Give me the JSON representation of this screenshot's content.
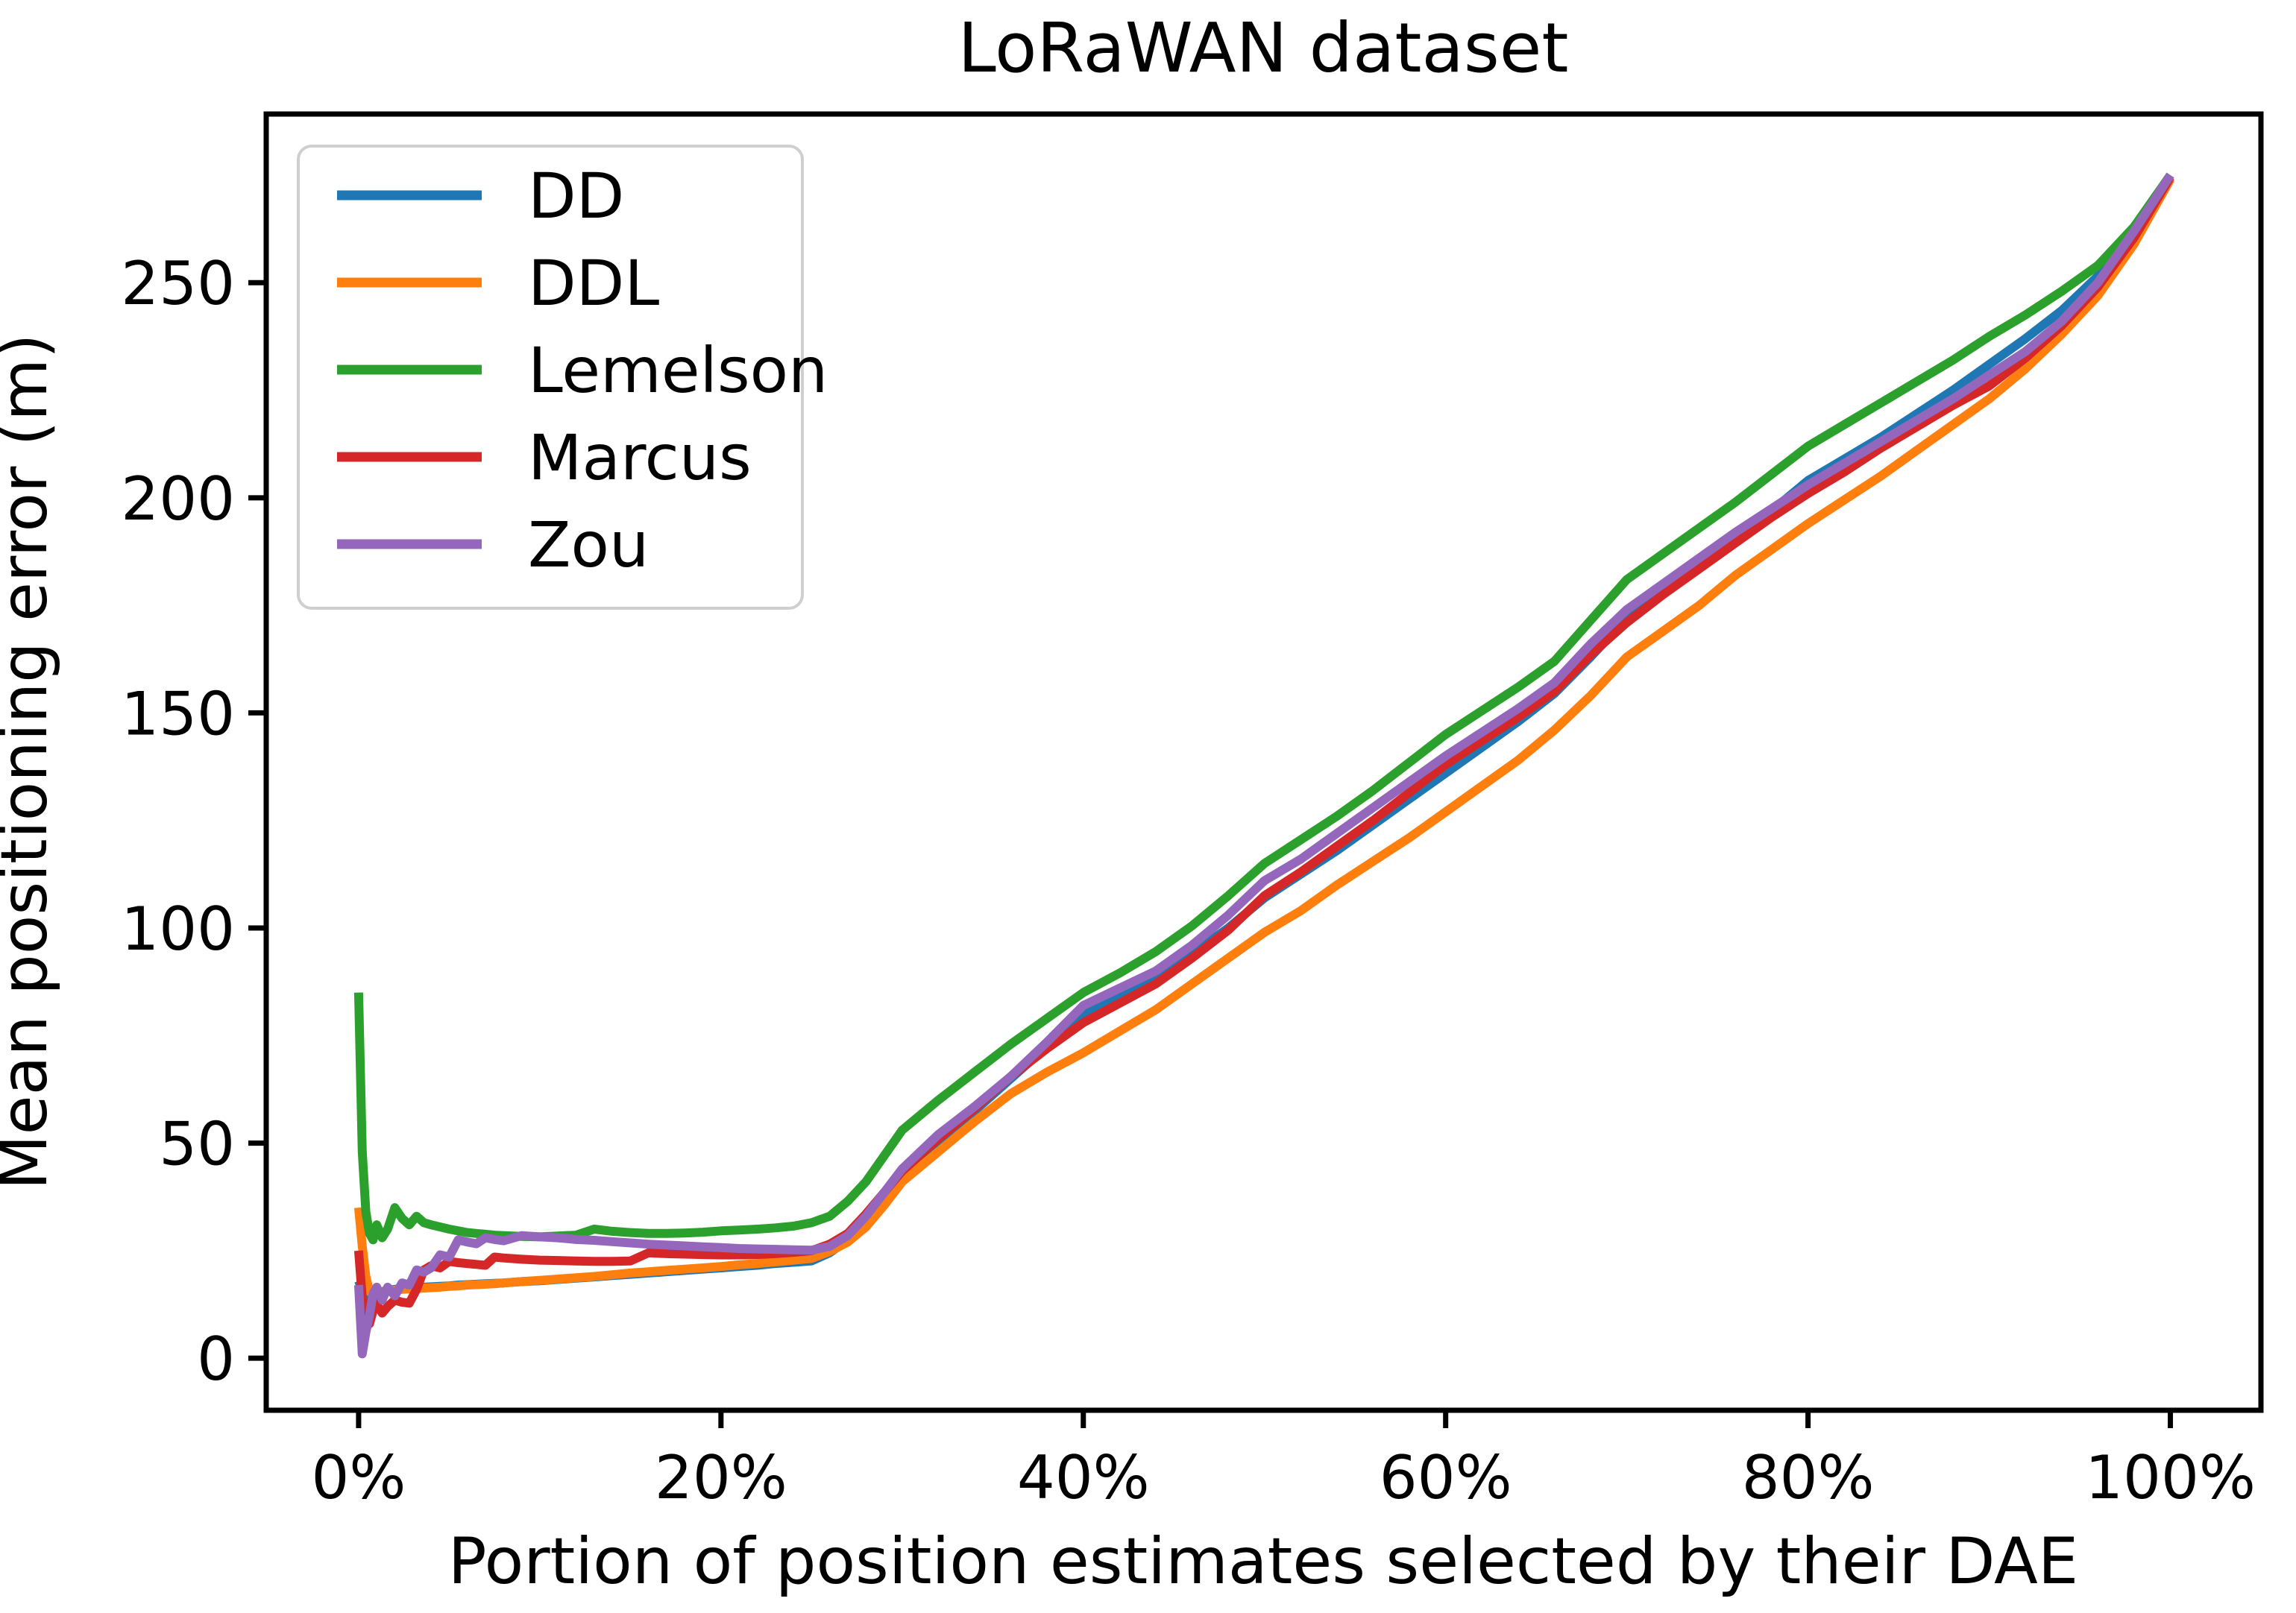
{
  "figure": {
    "background": "#ffffff",
    "text_color": "#000000",
    "spine_color": "#000000"
  },
  "chart_data": {
    "type": "line",
    "title": "LoRaWAN dataset",
    "xlabel": "Portion of position estimates selected by their DAE",
    "ylabel": "Mean positioning error (m)",
    "x_ticks": [
      0,
      20,
      40,
      60,
      80,
      100
    ],
    "x_tick_labels": [
      "0%",
      "20%",
      "40%",
      "60%",
      "80%",
      "100%"
    ],
    "y_ticks": [
      0,
      50,
      100,
      150,
      200,
      250
    ],
    "y_tick_labels": [
      "0",
      "50",
      "100",
      "150",
      "200",
      "250"
    ],
    "xlim": [
      -5.1,
      105.0
    ],
    "ylim": [
      -12.1,
      289.2
    ],
    "grid": false,
    "legend_position": "upper left",
    "legend_border_color": "#cfcfcf",
    "x": [
      0,
      0.2,
      0.4,
      0.6,
      0.8,
      1,
      1.3,
      1.6,
      2,
      2.4,
      2.8,
      3.2,
      3.6,
      4,
      4.5,
      5,
      5.5,
      6,
      6.5,
      7,
      7.5,
      8,
      9,
      10,
      11,
      12,
      13,
      14,
      15,
      16,
      17,
      18,
      19,
      20,
      21,
      22,
      23,
      24,
      25,
      26,
      27,
      28,
      29,
      30,
      32,
      34,
      36,
      38,
      40,
      42,
      44,
      46,
      48,
      50,
      52,
      54,
      56,
      58,
      60,
      62,
      64,
      66,
      68,
      70,
      72,
      74,
      76,
      78,
      80,
      82,
      84,
      86,
      88,
      90,
      92,
      94,
      96,
      98,
      100
    ],
    "series": [
      {
        "name": "DD",
        "color": "#1f77b4",
        "values": [
          18,
          16,
          12,
          9,
          13,
          14.5,
          15.5,
          15.8,
          16,
          16.2,
          16.3,
          16.4,
          16.5,
          16.6,
          16.7,
          16.8,
          17,
          17.1,
          17.2,
          17.3,
          17.4,
          17.5,
          17.8,
          18,
          18.3,
          18.6,
          18.9,
          19.2,
          19.5,
          19.8,
          20.1,
          20.4,
          20.7,
          21,
          21.3,
          21.6,
          22,
          22.3,
          22.6,
          24.5,
          27.5,
          32,
          37,
          42,
          50,
          57.5,
          65,
          72.5,
          80,
          84,
          88.5,
          94,
          100,
          107,
          112.5,
          118,
          124,
          130,
          136,
          142,
          148,
          154.5,
          163,
          172,
          178,
          184,
          190.5,
          197,
          204,
          209,
          214,
          219.5,
          225,
          231,
          237,
          243.5,
          251.5,
          262,
          275
        ]
      },
      {
        "name": "DDL",
        "color": "#ff7f0e",
        "values": [
          35,
          26,
          19,
          15.5,
          15,
          15.2,
          15.4,
          15.6,
          15.8,
          16,
          16.1,
          16.2,
          16.3,
          16.4,
          16.5,
          16.7,
          16.8,
          17,
          17.1,
          17.2,
          17.3,
          17.5,
          17.8,
          18.1,
          18.4,
          18.7,
          19,
          19.4,
          19.8,
          20.1,
          20.4,
          20.7,
          21,
          21.3,
          21.7,
          22,
          22.4,
          22.8,
          23.2,
          24.8,
          27,
          30.5,
          35.5,
          41,
          48,
          55,
          61.5,
          66.5,
          71,
          76,
          81,
          87,
          93,
          99,
          104,
          110,
          115.5,
          121,
          127,
          133,
          139,
          146,
          154,
          163,
          169,
          175,
          182,
          188,
          194,
          199.5,
          205,
          211,
          217,
          223,
          230,
          238,
          247,
          259,
          274
        ]
      },
      {
        "name": "Lemelson",
        "color": "#2ca02c",
        "values": [
          85,
          48,
          34,
          29,
          27.5,
          31,
          28,
          30,
          35,
          32.5,
          31,
          33,
          31.5,
          31,
          30.5,
          30,
          29.6,
          29.2,
          29,
          28.8,
          28.6,
          28.5,
          28.3,
          28.2,
          28.4,
          28.6,
          30,
          29.5,
          29.2,
          29,
          29,
          29.1,
          29.3,
          29.6,
          29.8,
          30,
          30.3,
          30.7,
          31.5,
          33,
          36.5,
          41,
          47,
          53,
          60,
          66.5,
          73,
          79,
          85,
          89.5,
          94.5,
          100.5,
          107.5,
          115,
          120.5,
          126,
          132,
          138.5,
          145,
          150.5,
          156,
          162,
          171.5,
          181,
          187,
          193,
          199,
          205.5,
          212,
          217,
          222,
          227,
          232,
          237.5,
          242.5,
          248,
          254,
          263,
          275
        ]
      },
      {
        "name": "Marcus",
        "color": "#d62728",
        "values": [
          25,
          14,
          12,
          8,
          11,
          12.5,
          10.5,
          12,
          13.5,
          13,
          12.8,
          16,
          20.5,
          21.5,
          21,
          22.5,
          22.2,
          22,
          21.8,
          21.6,
          23.5,
          23.3,
          23,
          22.8,
          22.7,
          22.6,
          22.5,
          22.5,
          22.6,
          24.5,
          24.3,
          24.2,
          24.1,
          24,
          24,
          24.1,
          24.3,
          24.6,
          25,
          26.5,
          29,
          33.5,
          38.5,
          43.5,
          51,
          58,
          65.5,
          72,
          78,
          82.5,
          87,
          93,
          99.5,
          107.5,
          113,
          119,
          125,
          131.5,
          138,
          143.5,
          149,
          155,
          163.5,
          171,
          177.5,
          183.5,
          189.5,
          195.5,
          201,
          206,
          211.5,
          216.5,
          221.5,
          226,
          232.5,
          240,
          249,
          260.5,
          274.5
        ]
      },
      {
        "name": "Zou",
        "color": "#9467bd",
        "values": [
          17,
          1,
          6,
          10,
          15,
          16.5,
          13.5,
          16.5,
          14.5,
          17.5,
          17,
          20.5,
          20,
          21,
          24,
          23.5,
          27.5,
          27,
          26.6,
          28,
          27.6,
          27.3,
          28.5,
          28.2,
          28,
          27.6,
          27.4,
          27.1,
          26.8,
          26.5,
          26.3,
          26.1,
          25.9,
          25.7,
          25.5,
          25.4,
          25.3,
          25.2,
          25.1,
          26,
          28.5,
          33,
          38.5,
          44,
          52,
          58.5,
          65.5,
          73.5,
          82,
          86,
          90,
          96,
          103,
          111,
          116,
          122,
          128,
          134,
          140,
          145.5,
          151,
          157,
          166,
          174,
          180,
          186,
          192,
          197.5,
          203,
          208,
          213,
          218,
          223,
          228.5,
          234,
          241,
          250,
          262,
          275
        ]
      }
    ]
  }
}
